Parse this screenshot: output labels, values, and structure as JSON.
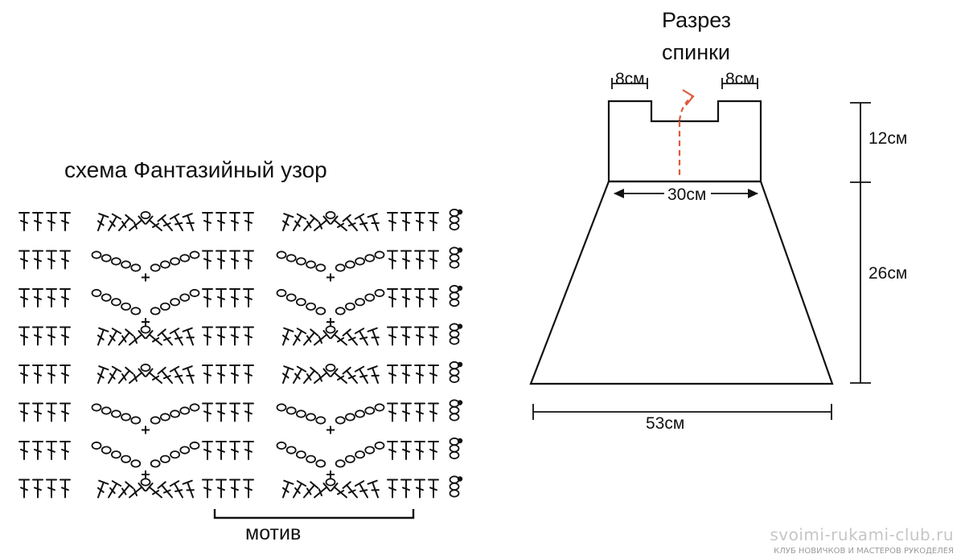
{
  "stitch_chart": {
    "title": "схема Фантазийный узор",
    "motif_label": "мотив",
    "row_count": 8,
    "symbols": [
      "dc-stitch-icon",
      "chain-stitch-icon",
      "sc-stitch-icon",
      "turning-chain-icon"
    ]
  },
  "back_pattern": {
    "title_line1": "Разрез",
    "title_line2": "спинки",
    "dims": {
      "strap_left": "8см",
      "strap_right": "8см",
      "yoke_width": "30см",
      "hem_width": "53см",
      "yoke_height": "12см",
      "skirt_height": "26см"
    },
    "colors": {
      "outline": "#111111",
      "slit": "#e05a3a"
    }
  },
  "watermark": {
    "site": "svoimi-rukami-club.ru",
    "club": "КЛУБ НОВИЧКОВ И МАСТЕРОВ РУКОДЕЛЕЯ"
  }
}
